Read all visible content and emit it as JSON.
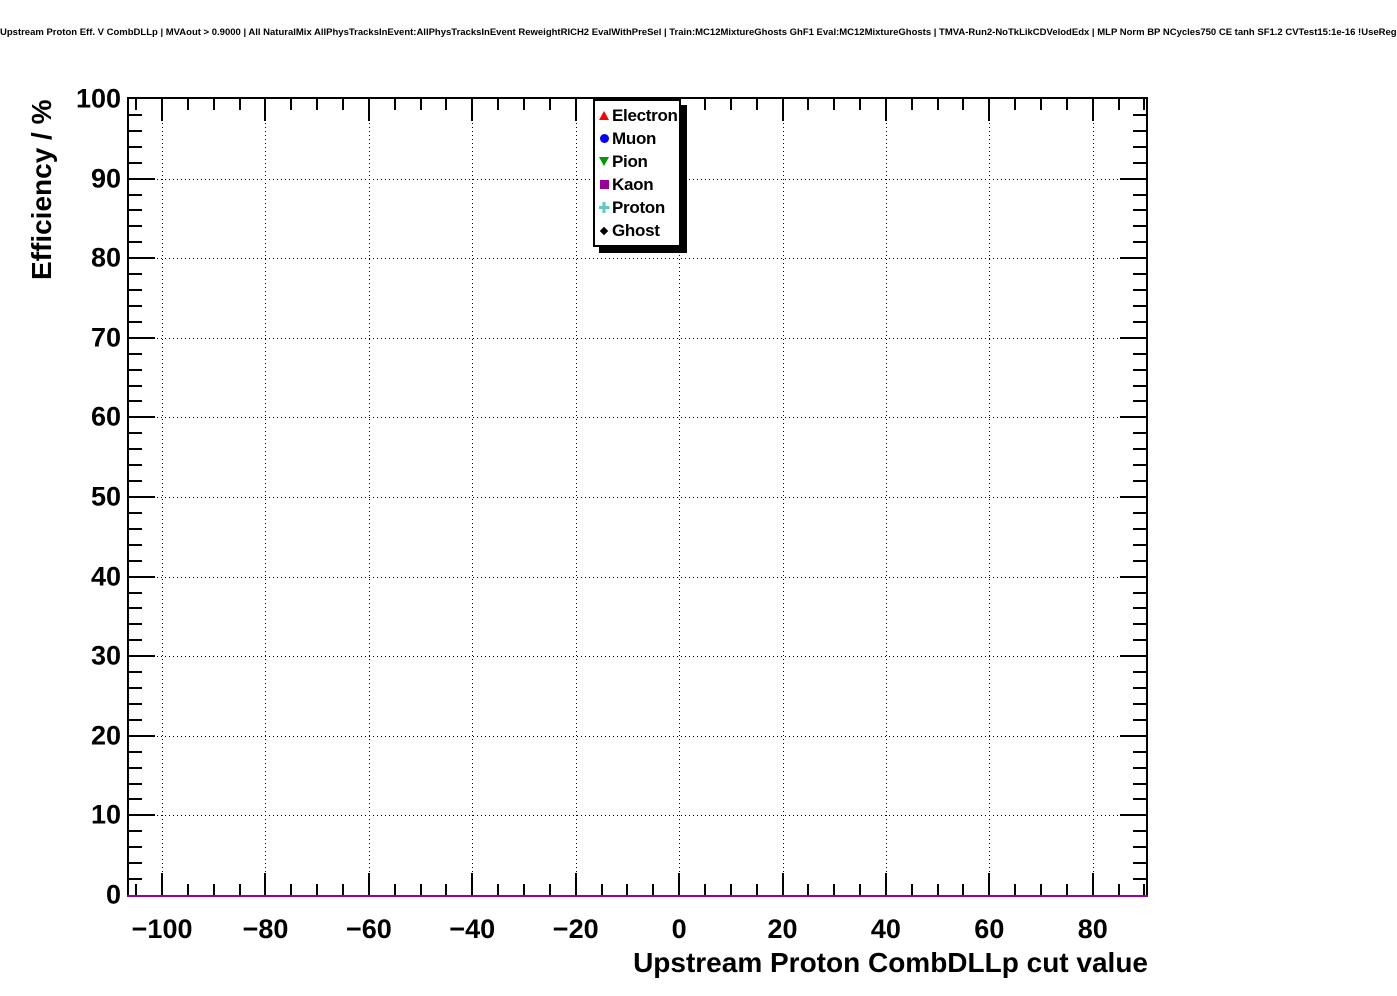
{
  "header": {
    "title": "Upstream Proton Eff. V CombDLLp | MVAout > 0.9000 | All NaturalMix AllPhysTracksInEvent:AllPhysTracksInEvent ReweightRICH2 EvalWithPreSel | Train:MC12MixtureGhosts GhF1 Eval:MC12MixtureGhosts | TMVA-Run2-NoTkLikCDVelodEdx | MLP Norm BP NCycles750 CE tanh SF1.2 CVTest15:1e-16 !UseReg"
  },
  "chart_data": {
    "type": "line",
    "title": "Upstream Proton Eff. V CombDLLp | MVAout > 0.9000 | All NaturalMix AllPhysTracksInEvent:AllPhysTracksInEvent ReweightRICH2 EvalWithPreSel | Train:MC12MixtureGhosts GhF1 Eval:MC12MixtureGhosts | TMVA-Run2-NoTkLikCDVelodEdx | MLP Norm BP NCycles750 CE tanh SF1.2 CVTest15:1e-16 !UseReg",
    "xlabel": "Upstream Proton CombDLLp cut value",
    "ylabel": "Efficiency / %",
    "xlim": [
      -106.4,
      90.3
    ],
    "ylim": [
      0,
      100
    ],
    "x_major_ticks": [
      {
        "v": -100,
        "label": "−100"
      },
      {
        "v": -80,
        "label": "−80"
      },
      {
        "v": -60,
        "label": "−60"
      },
      {
        "v": -40,
        "label": "−40"
      },
      {
        "v": -20,
        "label": "−20"
      },
      {
        "v": 0,
        "label": "0"
      },
      {
        "v": 20,
        "label": "20"
      },
      {
        "v": 40,
        "label": "40"
      },
      {
        "v": 60,
        "label": "60"
      },
      {
        "v": 80,
        "label": "80"
      }
    ],
    "y_major_ticks": [
      {
        "v": 0,
        "label": "0"
      },
      {
        "v": 10,
        "label": "10"
      },
      {
        "v": 20,
        "label": "20"
      },
      {
        "v": 30,
        "label": "30"
      },
      {
        "v": 40,
        "label": "40"
      },
      {
        "v": 50,
        "label": "50"
      },
      {
        "v": 60,
        "label": "60"
      },
      {
        "v": 70,
        "label": "70"
      },
      {
        "v": 80,
        "label": "80"
      },
      {
        "v": 90,
        "label": "90"
      },
      {
        "v": 100,
        "label": "100"
      }
    ],
    "x_minor_step": 5,
    "y_minor_step": 2,
    "grid": {
      "style": "dotted",
      "color": "#000000",
      "vertical_at_x_majors": true,
      "horizontal_at_y_majors": true
    },
    "legend": {
      "position": "top-center-inside",
      "border_color": "#000000",
      "shadow": true
    },
    "series": [
      {
        "name": "Electron",
        "marker": "triangle-up",
        "color": "#ff0000",
        "y_constant": 0
      },
      {
        "name": "Muon",
        "marker": "circle",
        "color": "#0000ff",
        "y_constant": 0
      },
      {
        "name": "Pion",
        "marker": "triangle-down",
        "color": "#009900",
        "y_constant": 0
      },
      {
        "name": "Kaon",
        "marker": "square",
        "color": "#990099",
        "y_constant": 0
      },
      {
        "name": "Proton",
        "marker": "cross",
        "color": "#5fc8c8",
        "y_constant": 0
      },
      {
        "name": "Ghost",
        "marker": "diamond",
        "color": "#000000",
        "y_constant": 0
      }
    ],
    "visible_flat_line": {
      "y": 0,
      "color": "#990099"
    }
  }
}
